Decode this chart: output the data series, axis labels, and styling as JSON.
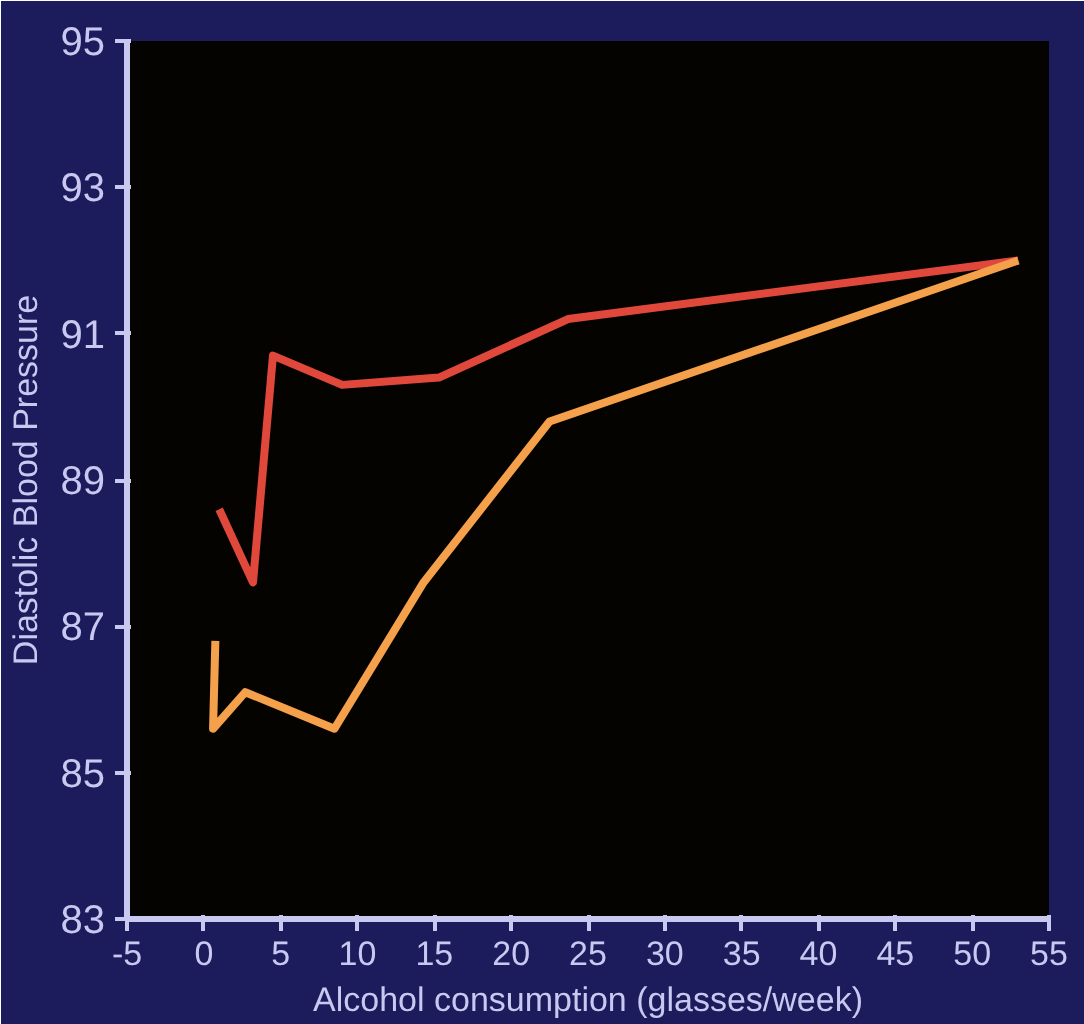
{
  "chart_data": {
    "type": "line",
    "xlabel": "Alcohol consumption (glasses/week)",
    "ylabel": "Diastolic Blood Pressure",
    "xlim": [
      -5,
      55
    ],
    "xticks": [
      -5,
      0,
      5,
      10,
      15,
      20,
      25,
      30,
      35,
      40,
      45,
      50,
      55
    ],
    "ylim": [
      83,
      95
    ],
    "yticks": [
      83,
      85,
      87,
      89,
      91,
      93,
      95
    ],
    "grid": false,
    "marker": "none",
    "line_style": "solid",
    "series": [
      {
        "color": "#e0483c",
        "x": [
          1,
          3.2,
          4.5,
          9,
          15.3,
          23.7,
          53
        ],
        "values": [
          88.6,
          87.6,
          90.7,
          90.3,
          90.4,
          91.2,
          92.0
        ]
      },
      {
        "color": "#f5a04a",
        "x": [
          0.75,
          0.6,
          2.7,
          8.5,
          14.3,
          22.5,
          53
        ],
        "values": [
          86.8,
          85.6,
          86.1,
          85.6,
          87.6,
          89.8,
          92.0
        ]
      }
    ]
  }
}
